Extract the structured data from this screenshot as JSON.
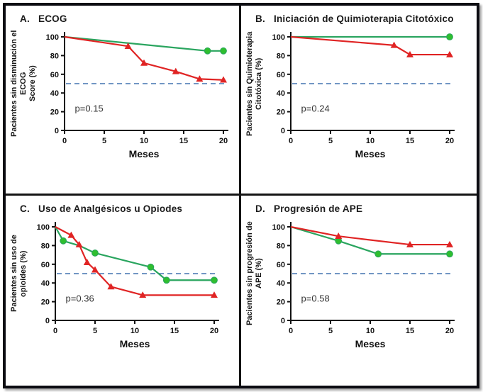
{
  "figure_caption": "Cuadrícula de cuatro gráficos de supervivencia",
  "colors": {
    "green_line": "#2aa55f",
    "green_marker": "#2fbe2f",
    "red_line": "#e02424",
    "reference_dashed": "#7296c4",
    "axis": "#111111",
    "border": "#0c0c12"
  },
  "chart_data": [
    {
      "panel_label": "A.",
      "title": "ECOG",
      "type": "line",
      "xlabel": "Meses",
      "ylabel": "Pacientes sin disminución el ECOG Score (%)",
      "ylabel_lines": [
        "Pacientes sin disminución el ECOG",
        "Score (%)"
      ],
      "xlim": [
        0,
        20
      ],
      "ylim": [
        0,
        100
      ],
      "xticks": [
        0,
        5,
        10,
        15,
        20
      ],
      "yticks": [
        0,
        20,
        40,
        60,
        80,
        100
      ],
      "reference_line_y": 50,
      "p_value": "p=0.15",
      "legend_position": "none",
      "grid": false,
      "series": [
        {
          "name": "serie verde (círculos)",
          "marker": "circle",
          "line_color": "#2aa55f",
          "marker_color": "#2fbe2f",
          "points": [
            [
              0,
              100
            ],
            [
              18,
              85
            ],
            [
              20,
              85
            ]
          ],
          "marker_points": [
            [
              18,
              85
            ],
            [
              20,
              85
            ]
          ]
        },
        {
          "name": "serie roja (triángulos)",
          "marker": "triangle",
          "line_color": "#e02424",
          "marker_color": "#e02424",
          "points": [
            [
              0,
              100
            ],
            [
              8,
              90
            ],
            [
              10,
              72
            ],
            [
              14,
              63
            ],
            [
              17,
              55
            ],
            [
              20,
              54
            ]
          ],
          "marker_points": [
            [
              8,
              90
            ],
            [
              10,
              72
            ],
            [
              14,
              63
            ],
            [
              17,
              55
            ],
            [
              20,
              54
            ]
          ]
        }
      ]
    },
    {
      "panel_label": "B.",
      "title": "Iniciación de Quimioterapia Citotóxico",
      "type": "line",
      "xlabel": "Meses",
      "ylabel": "Pacientes sin Quimioterapia Citotóxica (%)",
      "ylabel_lines": [
        "Pacientes sin Quimioterapia",
        "Citotóxica (%)"
      ],
      "xlim": [
        0,
        20
      ],
      "ylim": [
        0,
        100
      ],
      "xticks": [
        0,
        5,
        10,
        15,
        20
      ],
      "yticks": [
        0,
        20,
        40,
        60,
        80,
        100
      ],
      "reference_line_y": 50,
      "p_value": "p=0.24",
      "legend_position": "none",
      "grid": false,
      "series": [
        {
          "name": "serie verde (círculos)",
          "marker": "circle",
          "line_color": "#2aa55f",
          "marker_color": "#2fbe2f",
          "points": [
            [
              0,
              100
            ],
            [
              20,
              100
            ]
          ],
          "marker_points": [
            [
              20,
              100
            ]
          ]
        },
        {
          "name": "serie roja (triángulos)",
          "marker": "triangle",
          "line_color": "#e02424",
          "marker_color": "#e02424",
          "points": [
            [
              0,
              100
            ],
            [
              13,
              91
            ],
            [
              15,
              81
            ],
            [
              20,
              81
            ]
          ],
          "marker_points": [
            [
              13,
              91
            ],
            [
              15,
              81
            ],
            [
              20,
              81
            ]
          ]
        }
      ]
    },
    {
      "panel_label": "C.",
      "title": "Uso de Analgésicos u Opiodes",
      "type": "line",
      "xlabel": "Meses",
      "ylabel": "Pacientes sin uso de opioides (%)",
      "ylabel_lines": [
        "Pacientes sin uso de opioides (%)"
      ],
      "xlim": [
        0,
        20
      ],
      "ylim": [
        0,
        100
      ],
      "xticks": [
        0,
        5,
        10,
        15,
        20
      ],
      "yticks": [
        0,
        20,
        40,
        60,
        80,
        100
      ],
      "reference_line_y": 50,
      "p_value": "p=0.36",
      "legend_position": "none",
      "grid": false,
      "series": [
        {
          "name": "serie verde (círculos)",
          "marker": "circle",
          "line_color": "#2aa55f",
          "marker_color": "#2fbe2f",
          "points": [
            [
              0,
              100
            ],
            [
              1,
              85
            ],
            [
              3,
              80
            ],
            [
              5,
              72
            ],
            [
              12,
              57
            ],
            [
              14,
              43
            ],
            [
              20,
              43
            ]
          ],
          "marker_points": [
            [
              1,
              85
            ],
            [
              5,
              72
            ],
            [
              12,
              57
            ],
            [
              14,
              43
            ],
            [
              20,
              43
            ]
          ]
        },
        {
          "name": "serie roja (triángulos)",
          "marker": "triangle",
          "line_color": "#e02424",
          "marker_color": "#e02424",
          "points": [
            [
              0,
              100
            ],
            [
              2,
              91
            ],
            [
              3,
              81
            ],
            [
              4,
              62
            ],
            [
              5,
              54
            ],
            [
              7,
              36
            ],
            [
              11,
              27
            ],
            [
              20,
              27
            ]
          ],
          "marker_points": [
            [
              2,
              91
            ],
            [
              3,
              81
            ],
            [
              4,
              62
            ],
            [
              5,
              54
            ],
            [
              7,
              36
            ],
            [
              11,
              27
            ],
            [
              20,
              27
            ]
          ]
        }
      ]
    },
    {
      "panel_label": "D.",
      "title": "Progresión de APE",
      "type": "line",
      "xlabel": "Meses",
      "ylabel": "Pacientes sin progresión de APE (%)",
      "ylabel_lines": [
        "Pacientes sin progresión de APE (%)"
      ],
      "xlim": [
        0,
        20
      ],
      "ylim": [
        0,
        100
      ],
      "xticks": [
        0,
        5,
        10,
        15,
        20
      ],
      "yticks": [
        0,
        20,
        40,
        60,
        80,
        100
      ],
      "reference_line_y": 50,
      "p_value": "p=0.58",
      "legend_position": "none",
      "grid": false,
      "series": [
        {
          "name": "serie verde (círculos)",
          "marker": "circle",
          "line_color": "#2aa55f",
          "marker_color": "#2fbe2f",
          "points": [
            [
              0,
              100
            ],
            [
              6,
              85
            ],
            [
              11,
              71
            ],
            [
              20,
              71
            ]
          ],
          "marker_points": [
            [
              6,
              85
            ],
            [
              11,
              71
            ],
            [
              20,
              71
            ]
          ]
        },
        {
          "name": "serie roja (triángulos)",
          "marker": "triangle",
          "line_color": "#e02424",
          "marker_color": "#e02424",
          "points": [
            [
              0,
              100
            ],
            [
              6,
              90
            ],
            [
              15,
              81
            ],
            [
              20,
              81
            ]
          ],
          "marker_points": [
            [
              6,
              90
            ],
            [
              15,
              81
            ],
            [
              20,
              81
            ]
          ]
        }
      ]
    }
  ]
}
